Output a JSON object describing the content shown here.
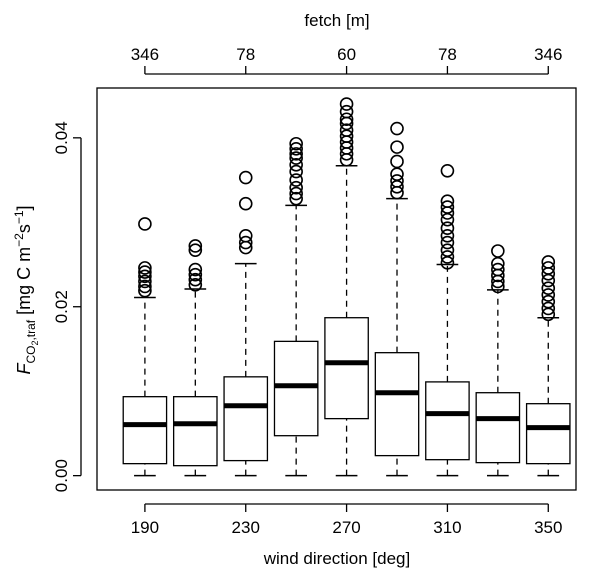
{
  "chart_data": {
    "type": "boxplot",
    "x_label": "wind direction [deg]",
    "x2_label": "fetch [m]",
    "y_label": [
      "F",
      "CO",
      "2",
      ",traf",
      " [mg C m",
      "−2",
      "s",
      "−1",
      "]"
    ],
    "x": [
      190,
      210,
      230,
      250,
      270,
      290,
      310,
      330,
      350
    ],
    "xlim": [
      171,
      361
    ],
    "xticks": [
      190,
      230,
      270,
      310,
      350
    ],
    "x2ticks": [
      {
        "value": 190,
        "label": "346"
      },
      {
        "value": 230,
        "label": "78"
      },
      {
        "value": 270,
        "label": "60"
      },
      {
        "value": 310,
        "label": "78"
      },
      {
        "value": 350,
        "label": "346"
      }
    ],
    "ylim": [
      -0.0017,
      0.0459
    ],
    "yticks": [
      {
        "value": 0,
        "label": "0.00"
      },
      0.02,
      0.04
    ],
    "color": "#000000",
    "boxes": [
      {
        "whisker_low": 0,
        "q1": 0.00142,
        "median": 0.00604,
        "q3": 0.00935,
        "whisker_high": 0.0211,
        "outliers": [
          0.0298,
          0.0246,
          0.0241,
          0.0236,
          0.023,
          0.0224,
          0.0219
        ]
      },
      {
        "whisker_low": 0,
        "q1": 0.00118,
        "median": 0.00615,
        "q3": 0.00935,
        "whisker_high": 0.0221,
        "outliers": [
          0.0272,
          0.0267,
          0.0244,
          0.0238,
          0.0232,
          0.0226
        ]
      },
      {
        "whisker_low": 0,
        "q1": 0.00178,
        "median": 0.00828,
        "q3": 0.0117,
        "whisker_high": 0.0251,
        "outliers": [
          0.0353,
          0.0322,
          0.0284,
          0.0276,
          0.027
        ]
      },
      {
        "whisker_low": 0,
        "q1": 0.00473,
        "median": 0.01065,
        "q3": 0.0159,
        "whisker_high": 0.032,
        "outliers": [
          0.0393,
          0.0387,
          0.0381,
          0.0376,
          0.0368,
          0.036,
          0.035,
          0.0341,
          0.0334,
          0.0328
        ]
      },
      {
        "whisker_low": 0,
        "q1": 0.00675,
        "median": 0.01337,
        "q3": 0.0187,
        "whisker_high": 0.0367,
        "outliers": [
          0.044,
          0.0431,
          0.0422,
          0.0417,
          0.0409,
          0.0402,
          0.0395,
          0.0388,
          0.0381,
          0.0374
        ]
      },
      {
        "whisker_low": 0,
        "q1": 0.00237,
        "median": 0.00982,
        "q3": 0.01456,
        "whisker_high": 0.0328,
        "outliers": [
          0.0411,
          0.0389,
          0.0372,
          0.0357,
          0.0349,
          0.0342,
          0.0335
        ]
      },
      {
        "whisker_low": 0,
        "q1": 0.00189,
        "median": 0.00734,
        "q3": 0.0111,
        "whisker_high": 0.025,
        "outliers": [
          0.0361,
          0.0325,
          0.0318,
          0.0311,
          0.0303,
          0.0293,
          0.0284,
          0.0276,
          0.0267,
          0.0259,
          0.0252
        ]
      },
      {
        "whisker_low": 0,
        "q1": 0.00154,
        "median": 0.00675,
        "q3": 0.00982,
        "whisker_high": 0.022,
        "outliers": [
          0.0266,
          0.0251,
          0.0244,
          0.0237,
          0.023,
          0.0224
        ]
      },
      {
        "whisker_low": 0,
        "q1": 0.00142,
        "median": 0.00568,
        "q3": 0.00852,
        "whisker_high": 0.0187,
        "outliers": [
          0.0253,
          0.0246,
          0.0239,
          0.0231,
          0.0222,
          0.0214,
          0.0206,
          0.0198,
          0.0191
        ]
      }
    ]
  }
}
